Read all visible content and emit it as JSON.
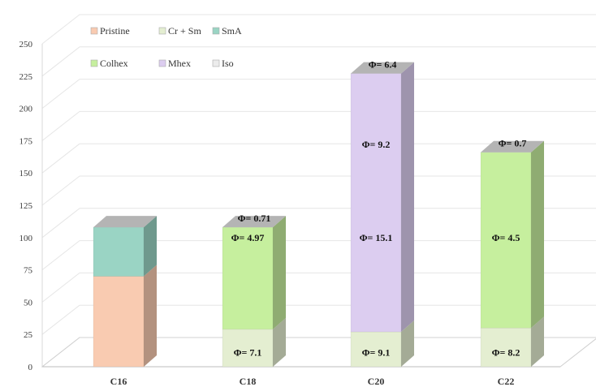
{
  "chart_data": {
    "type": "bar",
    "subtype": "stacked-3d",
    "categories": [
      "C16",
      "C18",
      "C20",
      "C22"
    ],
    "ylim": [
      0,
      250
    ],
    "yticks": [
      "0",
      "25",
      "50",
      "75",
      "100",
      "125",
      "150",
      "175",
      "200",
      "225",
      "250"
    ],
    "grid": true,
    "legend": [
      {
        "name": "Pristine",
        "color": "#f9cbb1"
      },
      {
        "name": "Cr + Sm",
        "color": "#e4eed1"
      },
      {
        "name": "SmA",
        "color": "#9ad4c4"
      },
      {
        "name": "Colhex",
        "color": "#c6ef9e"
      },
      {
        "name": "Mhex",
        "color": "#dccdf0"
      },
      {
        "name": "Iso",
        "color": "#ececec"
      }
    ],
    "stacks": [
      {
        "category": "C16",
        "segments": [
          {
            "series": "Pristine",
            "from": 0,
            "to": 70,
            "color": "#f9cbb1"
          },
          {
            "series": "SmA",
            "from": 70,
            "to": 108,
            "color": "#9ad4c4"
          }
        ]
      },
      {
        "category": "C18",
        "segments": [
          {
            "series": "Cr + Sm",
            "from": 0,
            "to": 29,
            "color": "#e4eed1"
          },
          {
            "series": "Colhex",
            "from": 29,
            "to": 108,
            "color": "#c6ef9e"
          }
        ]
      },
      {
        "category": "C20",
        "segments": [
          {
            "series": "Cr + Sm",
            "from": 0,
            "to": 27,
            "color": "#e4eed1"
          },
          {
            "series": "Mhex",
            "from": 27,
            "to": 227,
            "color": "#dccdf0"
          }
        ]
      },
      {
        "category": "C22",
        "segments": [
          {
            "series": "Cr + Sm",
            "from": 0,
            "to": 30,
            "color": "#e4eed1"
          },
          {
            "series": "Colhex",
            "from": 30,
            "to": 166,
            "color": "#c6ef9e"
          }
        ]
      }
    ],
    "annotations": [
      {
        "category": "C18",
        "text": "Φ= 7.1",
        "value": 11
      },
      {
        "category": "C18",
        "text": "Φ= 4.97",
        "value": 100
      },
      {
        "category": "C18",
        "text": "Φ= 0.71",
        "value": 115,
        "top": true
      },
      {
        "category": "C20",
        "text": "Φ= 9.1",
        "value": 11
      },
      {
        "category": "C20",
        "text": "Φ= 15.1",
        "value": 100
      },
      {
        "category": "C20",
        "text": "Φ= 9.2",
        "value": 172
      },
      {
        "category": "C20",
        "text": "Φ= 6.4",
        "value": 234,
        "top": true
      },
      {
        "category": "C22",
        "text": "Φ= 8.2",
        "value": 11
      },
      {
        "category": "C22",
        "text": "Φ= 4.5",
        "value": 100
      },
      {
        "category": "C22",
        "text": "Φ= 0.7",
        "value": 173,
        "top": true
      }
    ]
  }
}
